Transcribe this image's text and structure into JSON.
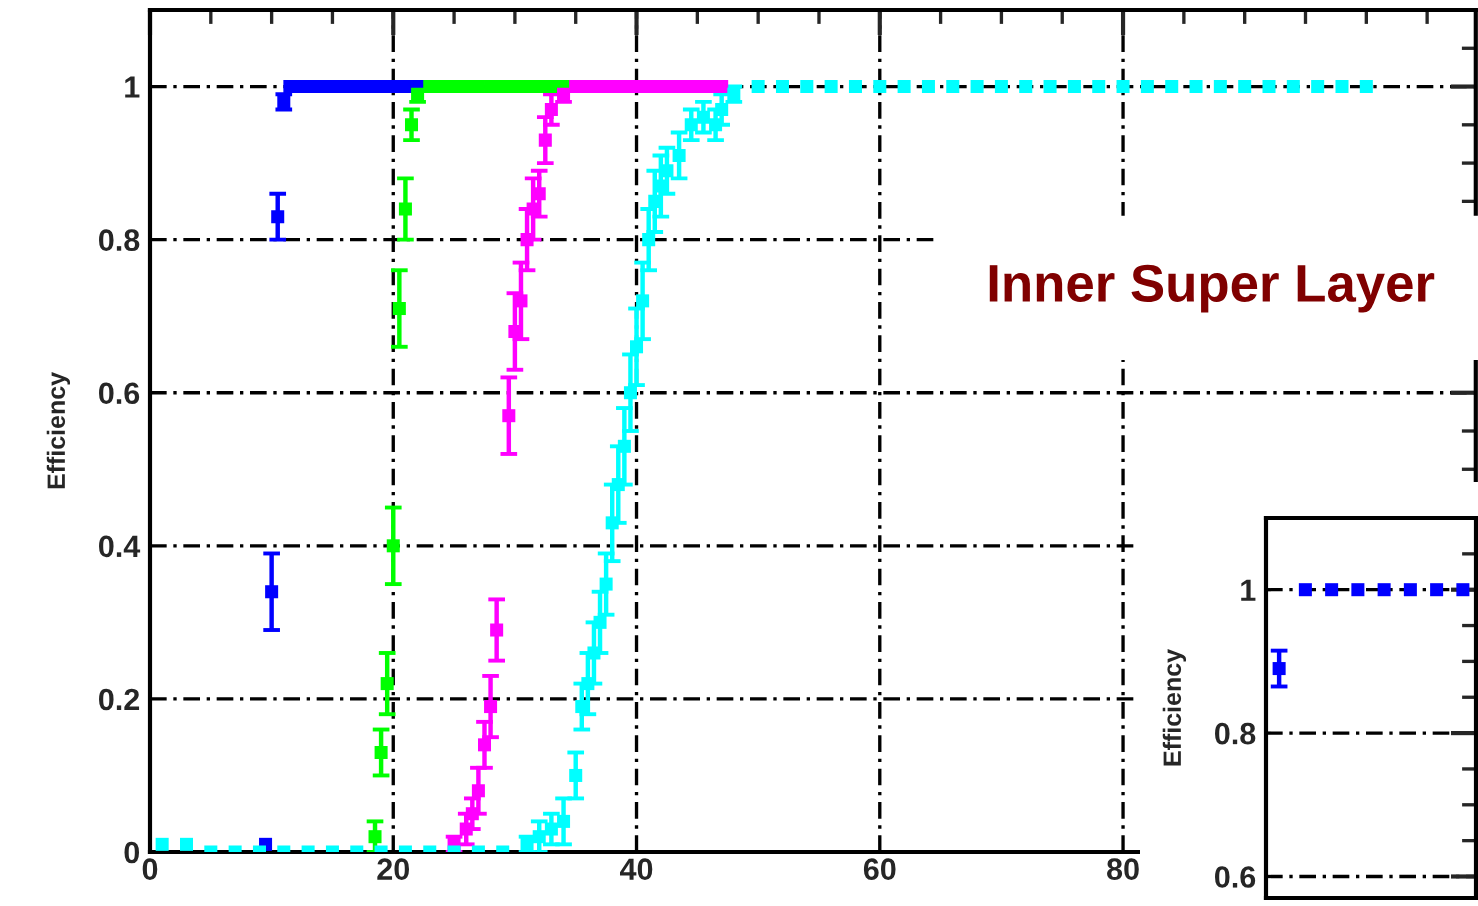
{
  "chart_data": [
    {
      "type": "scatter",
      "ylabel": "Efficiency",
      "annotations": [
        "Inner Super Layer"
      ],
      "xlim": [
        0,
        109
      ],
      "ylim": [
        0,
        1.1
      ],
      "xticks": [
        0,
        20,
        40,
        60,
        80
      ],
      "yticks": [
        0,
        0.2,
        0.4,
        0.6,
        0.8,
        1
      ],
      "grid": true,
      "marker": "square",
      "series": [
        {
          "color": "#0000ff",
          "x": [
            9.5,
            10,
            10.5,
            11,
            11.5,
            12,
            13,
            14,
            15,
            16,
            17,
            18,
            19,
            20,
            21,
            22
          ],
          "values": [
            0.01,
            0.34,
            0.83,
            0.98,
            1,
            1,
            1,
            1,
            1,
            1,
            1,
            1,
            1,
            1,
            1,
            1
          ],
          "errors": [
            null,
            0.05,
            0.03,
            0.01,
            null,
            null,
            null,
            null,
            null,
            null,
            null,
            null,
            null,
            null,
            null,
            null
          ]
        },
        {
          "color": "#00ff00",
          "x": [
            18.5,
            19,
            19.5,
            20,
            20.5,
            21,
            21.5,
            22,
            23,
            24,
            25,
            26,
            27,
            28,
            29,
            30,
            31,
            32,
            33,
            34
          ],
          "values": [
            0.02,
            0.13,
            0.22,
            0.4,
            0.71,
            0.84,
            0.95,
            0.99,
            1,
            1,
            1,
            1,
            1,
            1,
            1,
            1,
            1,
            1,
            1,
            1
          ],
          "errors": [
            0.02,
            0.03,
            0.04,
            0.05,
            0.05,
            0.04,
            0.02,
            0.01,
            null,
            null,
            null,
            null,
            null,
            null,
            null,
            null,
            null,
            null,
            null,
            null
          ]
        },
        {
          "color": "#ff00ff",
          "x": [
            25,
            26,
            26.5,
            27,
            27.5,
            28,
            28.5,
            29.5,
            30,
            30.5,
            31,
            31.5,
            32,
            32.5,
            33,
            34,
            35,
            36,
            37,
            38,
            39,
            40,
            41,
            42,
            43,
            44,
            45,
            46,
            47
          ],
          "values": [
            0.01,
            0.03,
            0.05,
            0.08,
            0.14,
            0.19,
            0.29,
            0.57,
            0.68,
            0.72,
            0.8,
            0.84,
            0.86,
            0.93,
            0.97,
            0.99,
            1,
            1,
            1,
            1,
            1,
            1,
            1,
            1,
            1,
            1,
            1,
            1,
            1
          ],
          "errors": [
            0.01,
            0.02,
            0.02,
            0.03,
            0.03,
            0.04,
            0.04,
            0.05,
            0.05,
            0.05,
            0.04,
            0.04,
            0.03,
            0.03,
            0.02,
            0.01,
            null,
            null,
            null,
            null,
            null,
            null,
            null,
            null,
            null,
            null,
            null,
            null,
            null
          ]
        },
        {
          "color": "#00ffff",
          "x": [
            1,
            3,
            5,
            7,
            9,
            11,
            13,
            15,
            17,
            19,
            21,
            23,
            25,
            27,
            29,
            31,
            32,
            33,
            34,
            35,
            35.5,
            36,
            36.5,
            37,
            37.5,
            38,
            38.5,
            39,
            39.5,
            40,
            40.5,
            41,
            41.5,
            42,
            42.5,
            43.5,
            44.5,
            45.5,
            46.5,
            47,
            48,
            50,
            52,
            54,
            56,
            58,
            60,
            62,
            64,
            66,
            68,
            70,
            72,
            74,
            76,
            78,
            80,
            82,
            84,
            86,
            88,
            90,
            92,
            94,
            96,
            98,
            100
          ],
          "values": [
            0.01,
            0.01,
            0,
            0,
            0,
            0,
            0,
            0,
            0,
            0,
            0,
            0,
            0,
            0,
            0,
            0.01,
            0.02,
            0.03,
            0.04,
            0.1,
            0.19,
            0.22,
            0.26,
            0.3,
            0.35,
            0.43,
            0.48,
            0.53,
            0.6,
            0.66,
            0.72,
            0.8,
            0.85,
            0.87,
            0.89,
            0.91,
            0.95,
            0.96,
            0.95,
            0.97,
            0.99,
            1,
            1,
            1,
            1,
            1,
            1,
            1,
            1,
            1,
            1,
            1,
            1,
            1,
            1,
            1,
            1,
            1,
            1,
            1,
            1,
            1,
            1,
            1,
            1,
            1,
            1
          ],
          "errors": [
            null,
            null,
            null,
            null,
            null,
            null,
            null,
            null,
            null,
            null,
            null,
            null,
            null,
            null,
            null,
            0.01,
            0.02,
            0.02,
            0.03,
            0.03,
            0.03,
            0.04,
            0.04,
            0.04,
            0.04,
            0.05,
            0.05,
            0.05,
            0.05,
            0.05,
            0.05,
            0.04,
            0.04,
            0.04,
            0.03,
            0.03,
            0.02,
            0.02,
            0.02,
            0.02,
            0.01,
            null,
            null,
            null,
            null,
            null,
            null,
            null,
            null,
            null,
            null,
            null,
            null,
            null,
            null,
            null,
            null,
            null,
            null,
            null,
            null,
            null,
            null,
            null,
            null,
            null,
            null
          ]
        }
      ]
    },
    {
      "type": "scatter",
      "ylabel": "Efficiency",
      "categories": [
        null,
        null,
        null,
        null,
        null,
        null,
        null,
        null
      ],
      "ylim": [
        0.57,
        1.1
      ],
      "yticks": [
        0.6,
        0.8,
        1
      ],
      "grid": "y",
      "tick_labels": "y",
      "marker": "square",
      "series": [
        {
          "color": "#0000ff",
          "values": [
            0.89,
            1,
            1,
            1,
            1,
            1,
            1,
            1
          ],
          "errors": [
            0.025,
            null,
            null,
            null,
            null,
            null,
            null,
            null
          ]
        }
      ]
    }
  ]
}
